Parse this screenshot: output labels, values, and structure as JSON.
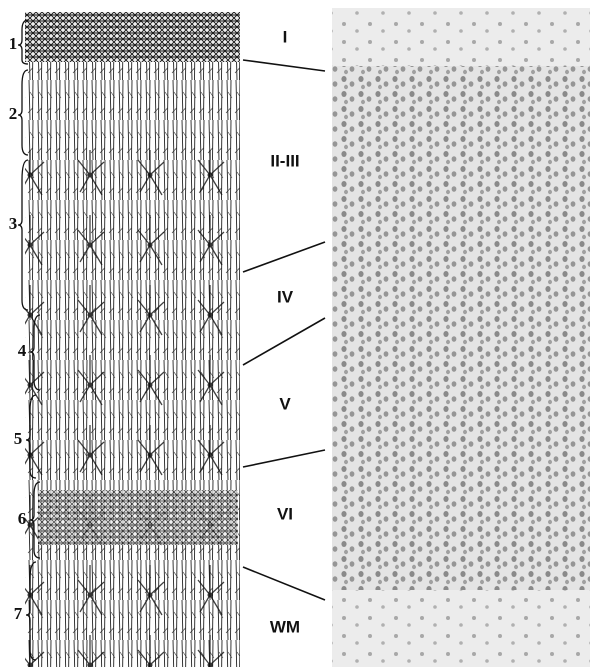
{
  "left_labels": [
    "1",
    "2",
    "3",
    "4",
    "5",
    "6",
    "7"
  ],
  "layers": [
    "I",
    "II-III",
    "IV",
    "V",
    "VI",
    "WM"
  ]
}
